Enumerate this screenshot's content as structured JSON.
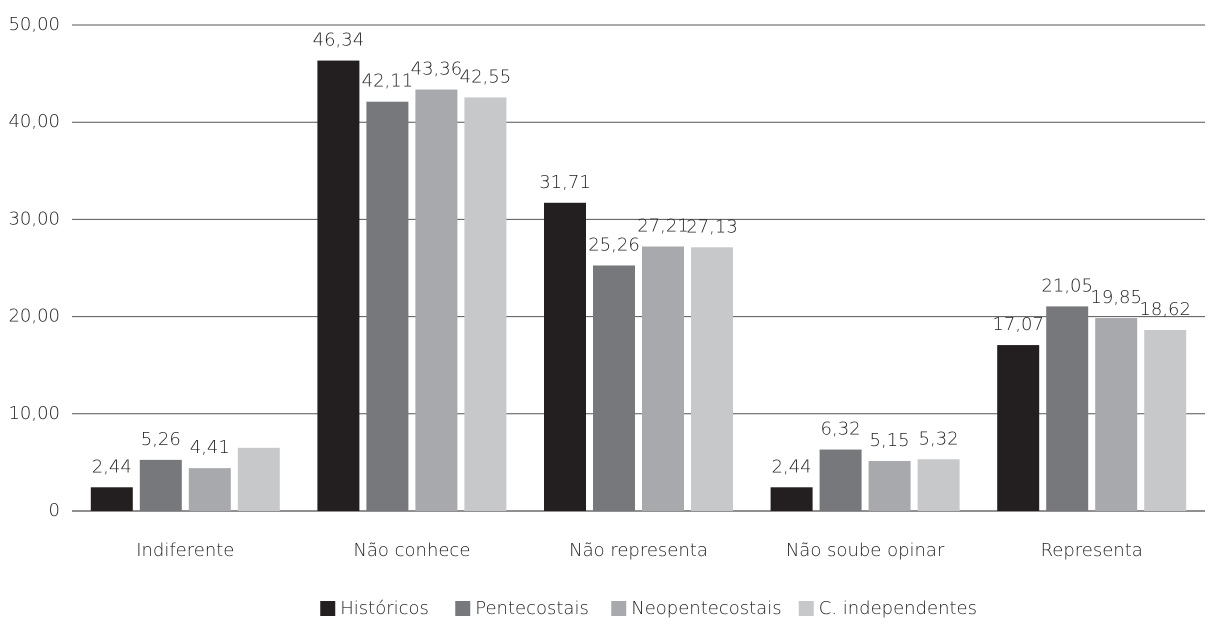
{
  "chart_data": {
    "type": "bar",
    "categories": [
      "Indiferente",
      "Não conhece",
      "Não representa",
      "Não soube opinar",
      "Representa"
    ],
    "series": [
      {
        "name": "Históricos",
        "color": "#231f20",
        "values": [
          2.44,
          46.34,
          31.71,
          2.44,
          17.07
        ],
        "value_labels": [
          "2,44",
          "46,34",
          "31,71",
          "2,44",
          "17,07"
        ]
      },
      {
        "name": "Pentecostais",
        "color": "#77787b",
        "values": [
          5.26,
          42.11,
          25.26,
          6.32,
          21.05
        ],
        "value_labels": [
          "5,26",
          "42,11",
          "25,26",
          "6,32",
          "21,05"
        ]
      },
      {
        "name": "Neopentecostais",
        "color": "#a7a9ac",
        "values": [
          4.41,
          43.36,
          27.21,
          5.15,
          19.85
        ],
        "value_labels": [
          "4,41",
          "43,36",
          "27,21",
          "5,15",
          "19,85"
        ]
      },
      {
        "name": "C. independentes",
        "color": "#c7c8ca",
        "values": [
          6.5,
          42.55,
          27.13,
          5.32,
          18.62
        ],
        "value_labels": [
          null,
          "42,55",
          "27,13",
          "5,32",
          "18,62"
        ]
      }
    ],
    "ylim": [
      0,
      50
    ],
    "yticks": [
      0,
      {
        "value": 10,
        "label": "10,00"
      },
      {
        "value": 20,
        "label": "20,00"
      },
      {
        "value": 30,
        "label": "30,00"
      },
      {
        "value": 40,
        "label": "40,00"
      },
      {
        "value": 50,
        "label": "50,00"
      }
    ],
    "grid": true,
    "legend": "bottom"
  }
}
